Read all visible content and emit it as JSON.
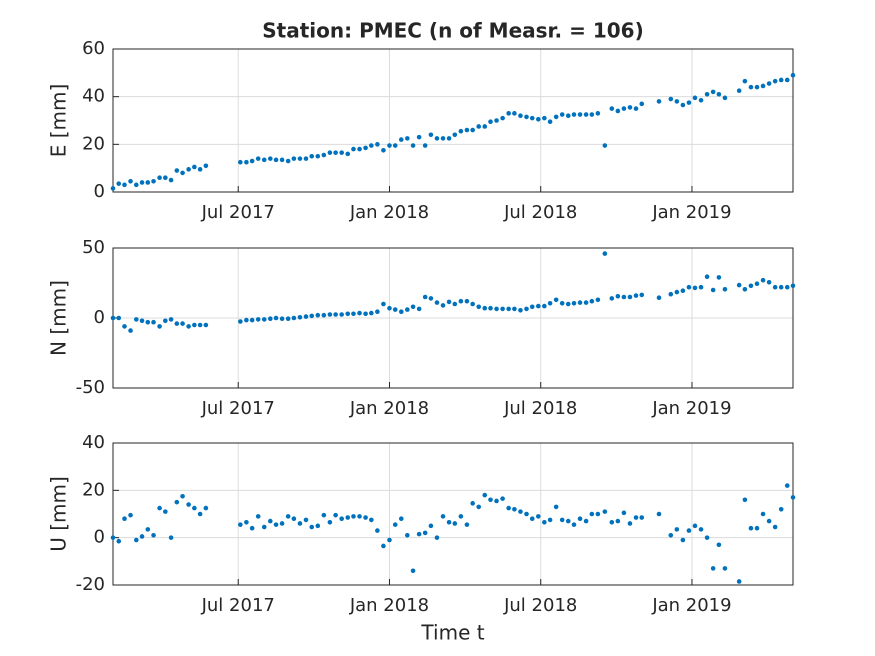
{
  "chart_data": {
    "type": "scatter",
    "title": "Station: PMEC (n of Measr. = 106)",
    "xlabel": "Time t",
    "color": "#0072bd",
    "grid": true,
    "xlim": [
      2017.086,
      2019.334
    ],
    "xticks": [
      {
        "value": 2017.5,
        "label": "Jul 2017"
      },
      {
        "value": 2018,
        "label": "Jan 2018"
      },
      {
        "value": 2018.5,
        "label": "Jul 2018"
      },
      {
        "value": 2019,
        "label": "Jan 2019"
      }
    ],
    "x": [
      2017.086,
      2017.105,
      2017.124,
      2017.144,
      2017.163,
      2017.182,
      2017.201,
      2017.22,
      2017.24,
      2017.259,
      2017.278,
      2017.297,
      2017.316,
      2017.336,
      2017.355,
      2017.374,
      2017.393,
      2017.507,
      2017.527,
      2017.546,
      2017.566,
      2017.586,
      2017.606,
      2017.625,
      2017.645,
      2017.665,
      2017.684,
      2017.704,
      2017.724,
      2017.743,
      2017.763,
      2017.783,
      2017.803,
      2017.822,
      2017.842,
      2017.862,
      2017.881,
      2017.901,
      2017.921,
      2017.94,
      2017.96,
      2017.98,
      2018.0,
      2018.019,
      2018.039,
      2018.059,
      2018.078,
      2018.098,
      2018.118,
      2018.137,
      2018.157,
      2018.177,
      2018.197,
      2018.216,
      2018.236,
      2018.256,
      2018.275,
      2018.295,
      2018.315,
      2018.334,
      2018.354,
      2018.374,
      2018.394,
      2018.413,
      2018.433,
      2018.453,
      2018.472,
      2018.492,
      2018.512,
      2018.531,
      2018.551,
      2018.571,
      2018.591,
      2018.61,
      2018.63,
      2018.65,
      2018.669,
      2018.689,
      2018.712,
      2018.735,
      2018.755,
      2018.775,
      2018.795,
      2018.815,
      2018.834,
      2018.891,
      2018.93,
      2018.95,
      2018.97,
      2018.99,
      2019.01,
      2019.03,
      2019.05,
      2019.07,
      2019.089,
      2019.109,
      2019.156,
      2019.175,
      2019.195,
      2019.215,
      2019.235,
      2019.255,
      2019.275,
      2019.295,
      2019.315,
      2019.334
    ],
    "panels": [
      {
        "ylabel": "E [mm]",
        "ylim": [
          0,
          60
        ],
        "yticks": [
          0,
          20,
          40,
          60
        ],
        "values": [
          1.5,
          3.5,
          3,
          4.5,
          3,
          4,
          4,
          4.5,
          6,
          6,
          5,
          9,
          8,
          9.5,
          10.5,
          9.5,
          11,
          12.5,
          12.5,
          13,
          14,
          13.5,
          14,
          13.5,
          13.5,
          13,
          14,
          14,
          14,
          15,
          15,
          15.5,
          16.5,
          16.5,
          16.5,
          16,
          18,
          18,
          18.5,
          19.5,
          20,
          17.5,
          19.5,
          19.5,
          22,
          22.5,
          19.5,
          23,
          19.5,
          24,
          22.5,
          22.5,
          22.5,
          24,
          25.5,
          26,
          26,
          27.5,
          27.5,
          29.5,
          30,
          31,
          33,
          33,
          32,
          31.5,
          31,
          30.5,
          31,
          29.5,
          31.5,
          32.5,
          32,
          32.5,
          32.5,
          32.5,
          32.5,
          33,
          19.5,
          35,
          34,
          35,
          35.5,
          35,
          37,
          38,
          39,
          38,
          36.5,
          37.5,
          39.5,
          38.5,
          41,
          42,
          41,
          39.5,
          42.5,
          46.5,
          44,
          44,
          44.5,
          45.5,
          46.5,
          47,
          47,
          49
        ]
      },
      {
        "ylabel": "N [mm]",
        "ylim": [
          -50,
          50
        ],
        "yticks": [
          -50,
          0,
          50
        ],
        "values": [
          0,
          0,
          -6,
          -9,
          -1,
          -2,
          -3,
          -3,
          -6,
          -2,
          -1,
          -4,
          -4,
          -6,
          -5,
          -5,
          -5,
          -2.5,
          -1.5,
          -1.5,
          -1,
          -1,
          -0.5,
          0,
          -0.5,
          -0.5,
          0,
          0.5,
          1,
          1.5,
          2,
          2,
          2.5,
          2.5,
          2.5,
          3,
          3,
          3.5,
          3,
          3.5,
          4.5,
          10,
          7,
          6,
          4.5,
          6,
          8,
          6.5,
          15,
          14,
          11,
          9,
          11.5,
          10,
          12,
          12,
          10,
          8,
          7,
          7,
          6.5,
          6.5,
          6.5,
          6.5,
          5.5,
          6.5,
          8,
          8.5,
          8.5,
          10.5,
          13,
          10.5,
          10,
          10.5,
          11,
          11,
          12,
          13,
          46,
          14,
          15.5,
          15,
          15,
          16,
          16.5,
          14.5,
          17,
          18.5,
          19.5,
          22,
          21.5,
          22,
          29.5,
          20,
          29,
          20.5,
          23.5,
          20.5,
          23,
          24.5,
          27,
          25.5,
          22,
          22,
          22,
          23
        ]
      },
      {
        "ylabel": "U [mm]",
        "ylim": [
          -20,
          40
        ],
        "yticks": [
          -20,
          0,
          20,
          40
        ],
        "values": [
          0,
          -1.5,
          8,
          9.5,
          -1,
          0.5,
          3.5,
          1,
          12.5,
          11,
          0,
          15,
          17.5,
          14,
          12.5,
          10,
          12.5,
          5.5,
          6.5,
          4,
          9,
          4.5,
          7,
          5.5,
          6,
          9,
          8,
          6,
          7.5,
          4.5,
          5,
          9.5,
          6.5,
          9.5,
          8,
          8.5,
          9,
          9,
          8.5,
          7.5,
          3,
          -3.5,
          -1,
          5.5,
          8,
          1,
          -14,
          1.5,
          2,
          5,
          0,
          9,
          6.5,
          6,
          9,
          5.5,
          14.5,
          13,
          18,
          16,
          15.5,
          16.5,
          12.5,
          12,
          11,
          10,
          8,
          9,
          6.5,
          7.5,
          13,
          7.5,
          7,
          5.5,
          8,
          7,
          10,
          10,
          11,
          6.5,
          7,
          10.5,
          6,
          8.5,
          8.5,
          10,
          1,
          3.5,
          -1,
          3,
          5,
          3.5,
          0,
          -13,
          -3,
          -13,
          -18.5,
          16,
          4,
          4,
          10,
          7,
          4.5,
          12,
          22,
          17
        ]
      }
    ]
  }
}
